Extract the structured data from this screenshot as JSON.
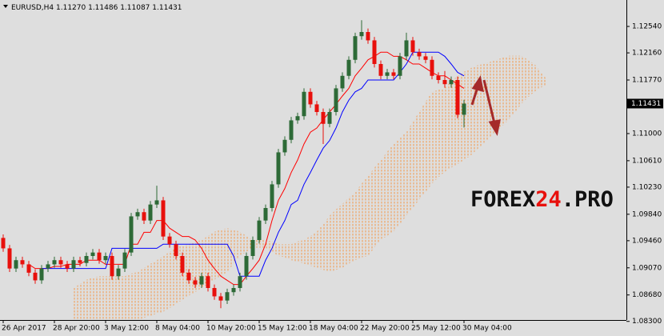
{
  "chart_data": {
    "type": "candlestick",
    "symbol": "EURUSD,H4",
    "ohlc_labels": [
      "1.11270",
      "1.11486",
      "1.11087",
      "1.11431"
    ],
    "last_price": {
      "value": 1.11431,
      "label": "1.11431"
    },
    "watermark": [
      "FOREX",
      "24",
      ".PRO"
    ],
    "categories": [
      "26 Apr 2017",
      null,
      null,
      null,
      null,
      null,
      null,
      null,
      "28 Apr 20:00",
      null,
      null,
      null,
      null,
      null,
      null,
      null,
      "3 May 12:00",
      null,
      null,
      null,
      null,
      null,
      null,
      null,
      "8 May 04:00",
      null,
      null,
      null,
      null,
      null,
      null,
      null,
      "10 May 20:00",
      null,
      null,
      null,
      null,
      null,
      null,
      null,
      "15 May 12:00",
      null,
      null,
      null,
      null,
      null,
      null,
      null,
      "18 May 04:00",
      null,
      null,
      null,
      null,
      null,
      null,
      null,
      "22 May 20:00",
      null,
      null,
      null,
      null,
      null,
      null,
      null,
      "25 May 12:00",
      null,
      null,
      null,
      null,
      null,
      null,
      null,
      "30 May 04:00",
      null,
      null,
      null,
      null,
      null,
      null,
      null,
      null,
      null,
      null,
      null,
      null,
      null
    ],
    "open": [
      1.095,
      1.0935,
      1.0906,
      1.0918,
      1.0912,
      1.09,
      1.0889,
      1.0906,
      1.0912,
      1.0918,
      1.0912,
      1.0906,
      1.0918,
      1.0914,
      1.0924,
      1.0929,
      1.0918,
      1.0924,
      1.0895,
      1.0906,
      1.0929,
      1.0981,
      1.0987,
      1.0975,
      1.0998,
      1.1004,
      1.0952,
      1.0941,
      1.0924,
      1.09,
      1.0889,
      1.0883,
      1.0895,
      1.0878,
      1.0866,
      1.086,
      1.0872,
      1.0878,
      1.0895,
      1.0924,
      1.0947,
      1.0975,
      1.0993,
      1.1027,
      1.1073,
      1.1091,
      1.1119,
      1.1125,
      1.116,
      1.1142,
      1.1131,
      1.1114,
      1.1131,
      1.1165,
      1.1183,
      1.1206,
      1.124,
      1.1246,
      1.1234,
      1.12,
      1.1183,
      1.1188,
      1.1183,
      1.1211,
      1.1234,
      1.1217,
      1.1211,
      1.1206,
      1.1183,
      1.1177,
      1.1171,
      1.1177,
      1.1127,
      null,
      null,
      null,
      null,
      null,
      null,
      null,
      null,
      null,
      null,
      null,
      null,
      null
    ],
    "high": [
      1.0955,
      1.094,
      1.0923,
      1.0923,
      1.0917,
      1.0905,
      1.0911,
      1.0917,
      1.0923,
      1.0923,
      1.0917,
      1.0923,
      1.0923,
      1.0929,
      1.0934,
      1.0934,
      1.0929,
      1.0929,
      1.0911,
      1.0934,
      1.0986,
      1.0992,
      1.0992,
      1.1003,
      1.1025,
      1.1009,
      1.0957,
      1.0946,
      1.0929,
      1.0905,
      1.0894,
      1.09,
      1.09,
      1.0883,
      1.0871,
      1.0877,
      1.0883,
      1.09,
      1.0929,
      1.0952,
      1.098,
      1.0998,
      1.1032,
      1.1078,
      1.1096,
      1.1124,
      1.113,
      1.1165,
      1.1165,
      1.1147,
      1.1136,
      1.1136,
      1.117,
      1.1188,
      1.1211,
      1.1245,
      1.1263,
      1.1251,
      1.1239,
      1.1205,
      1.1193,
      1.1193,
      1.1216,
      1.1245,
      1.1239,
      1.1222,
      1.1216,
      1.1211,
      1.1188,
      1.119,
      1.1182,
      1.1182,
      1.11486,
      null,
      null,
      null,
      null,
      null,
      null,
      null,
      null,
      null,
      null,
      null,
      null,
      null
    ],
    "low": [
      1.093,
      1.0901,
      1.0901,
      1.0907,
      1.0895,
      1.0884,
      1.0884,
      1.0901,
      1.0907,
      1.0907,
      1.0901,
      1.0901,
      1.0909,
      1.0909,
      1.0919,
      1.0913,
      1.0913,
      1.089,
      1.089,
      1.0901,
      1.0924,
      1.0976,
      1.097,
      1.097,
      1.0993,
      1.0947,
      1.0936,
      1.0919,
      1.0895,
      1.0884,
      1.0878,
      1.0878,
      1.0873,
      1.0861,
      1.0849,
      1.0855,
      1.0867,
      1.0873,
      1.089,
      1.0919,
      1.0942,
      1.097,
      1.0988,
      1.1022,
      1.1068,
      1.1086,
      1.1114,
      1.112,
      1.1137,
      1.1126,
      1.1085,
      1.1109,
      1.1126,
      1.116,
      1.1178,
      1.1201,
      1.1235,
      1.1229,
      1.1195,
      1.1178,
      1.1178,
      1.1178,
      1.1178,
      1.1206,
      1.1212,
      1.1206,
      1.1201,
      1.1178,
      1.1172,
      1.1166,
      1.1166,
      1.1122,
      1.11087,
      null,
      null,
      null,
      null,
      null,
      null,
      null,
      null,
      null,
      null,
      null,
      null,
      null
    ],
    "close": [
      1.0935,
      1.0906,
      1.0918,
      1.0912,
      1.09,
      1.0889,
      1.0906,
      1.0912,
      1.0918,
      1.0912,
      1.0906,
      1.0918,
      1.0914,
      1.0924,
      1.0929,
      1.0918,
      1.0924,
      1.0895,
      1.0906,
      1.0929,
      1.0981,
      1.0987,
      1.0975,
      1.0998,
      1.1004,
      1.0952,
      1.0941,
      1.0924,
      1.09,
      1.0889,
      1.0883,
      1.0895,
      1.0878,
      1.0866,
      1.086,
      1.0872,
      1.0878,
      1.0895,
      1.0924,
      1.0947,
      1.0975,
      1.0993,
      1.1027,
      1.1073,
      1.1091,
      1.1119,
      1.1125,
      1.116,
      1.1142,
      1.1131,
      1.1114,
      1.1131,
      1.1165,
      1.1183,
      1.1206,
      1.124,
      1.1246,
      1.1234,
      1.12,
      1.1183,
      1.1188,
      1.1183,
      1.1211,
      1.1234,
      1.1217,
      1.1211,
      1.1206,
      1.1183,
      1.1177,
      1.1171,
      1.1177,
      1.1127,
      1.11431,
      null,
      null,
      null,
      null,
      null,
      null,
      null,
      null,
      null,
      null,
      null,
      null,
      null
    ],
    "bull_color": "#2d6a37",
    "bear_color": "#e8100c",
    "lines": [
      {
        "color": "#ff0000",
        "values": [
          null,
          null,
          null,
          null,
          1.0912,
          1.0906,
          1.0906,
          1.0906,
          1.0909,
          1.0909,
          1.0912,
          1.0912,
          1.0912,
          1.0918,
          1.0918,
          1.0918,
          1.0912,
          1.0912,
          1.0912,
          1.0912,
          1.0941,
          1.0941,
          1.0958,
          1.0958,
          1.0975,
          1.0975,
          1.0964,
          1.0958,
          1.0952,
          1.0952,
          1.0947,
          1.0935,
          1.0918,
          1.0906,
          1.0895,
          1.0889,
          1.0883,
          1.0883,
          1.0895,
          1.0906,
          1.0918,
          1.0941,
          1.0975,
          1.1004,
          1.1021,
          1.1044,
          1.1062,
          1.1085,
          1.1102,
          1.1108,
          1.112,
          1.1131,
          1.1142,
          1.1154,
          1.1165,
          1.1183,
          1.1194,
          1.1206,
          1.1211,
          1.1217,
          1.1217,
          1.1211,
          1.1211,
          1.1206,
          1.12,
          1.12,
          1.1194,
          1.1188,
          1.1183,
          1.1183,
          1.1177,
          1.1171,
          1.1165,
          null,
          null,
          null,
          null,
          null,
          null,
          null,
          null,
          null,
          null,
          null,
          null,
          null
        ]
      },
      {
        "color": "#0000ff",
        "values": [
          null,
          null,
          null,
          null,
          null,
          null,
          1.0906,
          1.0906,
          1.0906,
          1.0906,
          1.0906,
          1.0906,
          1.0906,
          1.0906,
          1.0906,
          1.0906,
          1.0906,
          1.0935,
          1.0935,
          1.0935,
          1.0935,
          1.0935,
          1.0935,
          1.0935,
          1.0935,
          1.0941,
          1.0941,
          1.0941,
          1.0941,
          1.0941,
          1.0941,
          1.0941,
          1.0941,
          1.0941,
          1.0941,
          1.0941,
          1.0924,
          1.0895,
          1.0895,
          1.0895,
          1.0895,
          1.0918,
          1.0935,
          1.0958,
          1.0975,
          1.0998,
          1.1004,
          1.1027,
          1.1044,
          1.1062,
          1.1079,
          1.109,
          1.1108,
          1.1131,
          1.1148,
          1.116,
          1.1165,
          1.1177,
          1.1177,
          1.1177,
          1.1177,
          1.1177,
          1.1188,
          1.12,
          1.1217,
          1.1217,
          1.1217,
          1.1217,
          1.1217,
          1.1211,
          1.12,
          1.1188,
          1.1183,
          null,
          null,
          null,
          null,
          null,
          null,
          null,
          null,
          null,
          null,
          null,
          null,
          null
        ]
      }
    ],
    "cloud": {
      "color": "#f29a4e",
      "span_a": [
        null,
        null,
        null,
        null,
        null,
        null,
        null,
        null,
        null,
        null,
        null,
        1.0878,
        1.0884,
        1.089,
        1.0893,
        1.0895,
        1.0895,
        1.0895,
        1.0895,
        1.0895,
        1.0899,
        1.0901,
        1.0907,
        1.0913,
        1.0918,
        1.0924,
        1.093,
        1.0936,
        1.0939,
        1.0941,
        1.0945,
        1.0947,
        1.0953,
        1.0959,
        1.0962,
        1.0964,
        1.0962,
        1.0959,
        1.0953,
        1.0947,
        1.0947,
        1.0947,
        1.0945,
        1.0941,
        1.0941,
        1.0941,
        1.0945,
        1.0947,
        1.0953,
        1.0959,
        1.097,
        1.0982,
        1.0991,
        1.0999,
        1.1008,
        1.1016,
        1.1028,
        1.1039,
        1.1051,
        1.1062,
        1.1074,
        1.1085,
        1.1094,
        1.1102,
        1.1117,
        1.1131,
        1.1146,
        1.116,
        1.1163,
        1.1166,
        1.1175,
        1.1183,
        1.1189,
        1.1194,
        1.1198,
        1.12,
        1.1203,
        1.1206,
        1.1209,
        1.1212,
        1.1212,
        1.1212,
        1.1206,
        1.12,
        1.1189,
        1.1177
      ],
      "span_b": [
        null,
        null,
        null,
        null,
        null,
        null,
        null,
        null,
        null,
        null,
        null,
        1.0821,
        1.0821,
        1.0821,
        1.0821,
        1.0821,
        1.0821,
        1.0821,
        1.0824,
        1.0826,
        1.083,
        1.0832,
        1.0835,
        1.0838,
        1.0841,
        1.0844,
        1.0849,
        1.0855,
        1.0861,
        1.0867,
        1.0872,
        1.0878,
        1.0884,
        1.089,
        1.0895,
        1.0901,
        1.0913,
        1.0924,
        1.093,
        1.0936,
        1.0936,
        1.0936,
        1.093,
        1.0924,
        1.0922,
        1.0918,
        1.0916,
        1.0913,
        1.091,
        1.0907,
        1.0904,
        1.0901,
        1.0904,
        1.0907,
        1.0913,
        1.0918,
        1.0922,
        1.0924,
        1.0936,
        1.0947,
        1.0953,
        1.0959,
        1.097,
        1.0982,
        1.0993,
        1.1005,
        1.1016,
        1.1028,
        1.1037,
        1.1045,
        1.1051,
        1.1056,
        1.1062,
        1.1068,
        1.1077,
        1.1085,
        1.1094,
        1.1102,
        1.1111,
        1.112,
        1.1131,
        1.1143,
        1.1152,
        1.116,
        1.1166,
        1.1171
      ]
    },
    "ylim": [
      1.0832,
      1.1292
    ],
    "yticks": [
      {
        "value": 1.1254,
        "label": "1.12540"
      },
      {
        "value": 1.1216,
        "label": "1.12160"
      },
      {
        "value": 1.1177,
        "label": "1.11770"
      },
      {
        "value": 1.11,
        "label": "1.11000"
      },
      {
        "value": 1.1061,
        "label": "1.10610"
      },
      {
        "value": 1.1023,
        "label": "1.10230"
      },
      {
        "value": 1.0984,
        "label": "1.09840"
      },
      {
        "value": 1.0946,
        "label": "1.09460"
      },
      {
        "value": 1.0907,
        "label": "1.09070"
      },
      {
        "value": 1.0868,
        "label": "1.08680"
      },
      {
        "value": 1.083,
        "label": "1.08300"
      }
    ],
    "grid": false
  }
}
